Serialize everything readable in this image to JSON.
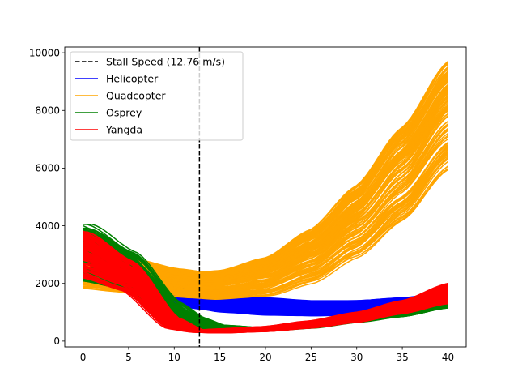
{
  "chart_data": {
    "type": "line",
    "title": "",
    "xlabel": "",
    "ylabel": "",
    "xlim": [
      -2,
      42
    ],
    "ylim": [
      -200,
      10200
    ],
    "x_ticks": [
      0,
      5,
      10,
      15,
      20,
      25,
      30,
      35,
      40
    ],
    "y_ticks": [
      0,
      2000,
      4000,
      6000,
      8000,
      10000
    ],
    "grid": false,
    "legend_position": "upper-left",
    "reference_line": {
      "label": "Stall Speed (12.76 m/s)",
      "x": 12.76,
      "style": "dashed",
      "color": "#000000"
    },
    "series": [
      {
        "name": "Helicopter",
        "color": "#0000ff",
        "lines": 120,
        "x": [
          0,
          5,
          10,
          12.76,
          15,
          20,
          25,
          30,
          35,
          40
        ],
        "min": [
          2050,
          1650,
          1250,
          1100,
          1000,
          900,
          880,
          900,
          1050,
          1350
        ],
        "max": [
          2850,
          2500,
          2000,
          1850,
          1700,
          1500,
          1400,
          1400,
          1500,
          1700
        ]
      },
      {
        "name": "Quadcopter",
        "color": "#ffa500",
        "lines": 120,
        "x": [
          0,
          5,
          10,
          12.76,
          15,
          20,
          25,
          30,
          35,
          40
        ],
        "min": [
          1850,
          1700,
          1550,
          1500,
          1450,
          1550,
          2000,
          2900,
          4200,
          5950
        ],
        "max": [
          3250,
          2850,
          2500,
          2400,
          2450,
          2900,
          3900,
          5400,
          7400,
          9700
        ]
      },
      {
        "name": "Osprey",
        "color": "#008000",
        "lines": 120,
        "x": [
          0,
          5,
          10,
          12.76,
          15,
          20,
          25,
          30,
          35,
          40
        ],
        "min": [
          2100,
          1800,
          600,
          450,
          300,
          350,
          450,
          650,
          850,
          1150
        ],
        "max": [
          4050,
          3100,
          1350,
          800,
          550,
          450,
          600,
          800,
          1100,
          1500
        ]
      },
      {
        "name": "Yangda",
        "color": "#ff0000",
        "lines": 120,
        "x": [
          0,
          5,
          10,
          12.76,
          15,
          20,
          25,
          30,
          35,
          40
        ],
        "min": [
          2200,
          1700,
          400,
          300,
          280,
          330,
          450,
          650,
          950,
          1300
        ],
        "max": [
          3850,
          2800,
          800,
          380,
          420,
          500,
          700,
          1000,
          1400,
          2000
        ]
      }
    ]
  }
}
